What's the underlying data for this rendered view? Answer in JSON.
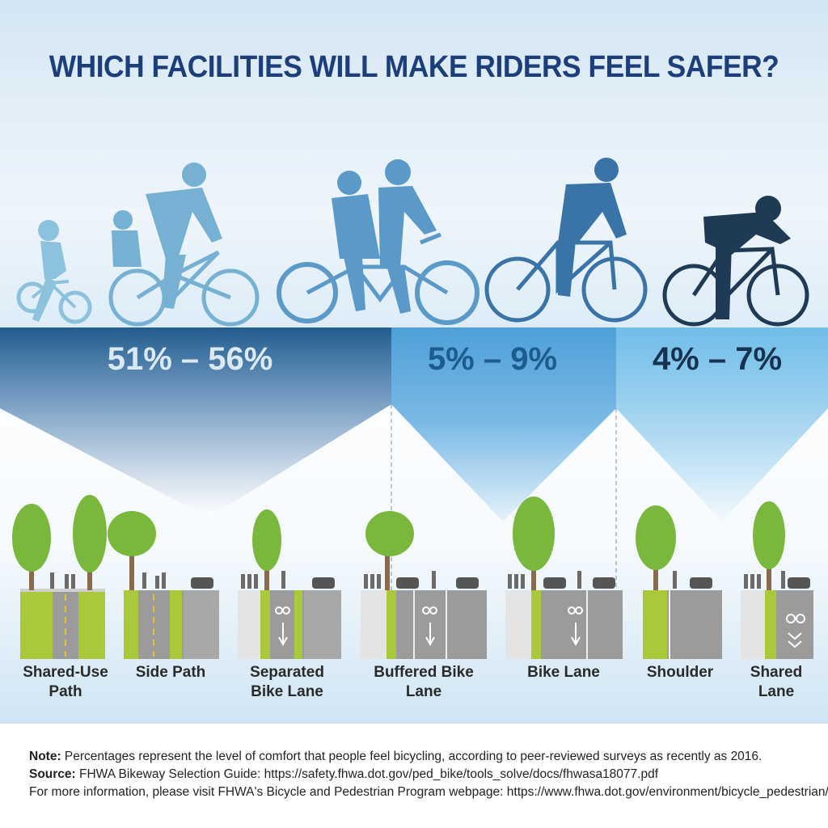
{
  "title": "WHICH FACILITIES WILL MAKE RIDERS FEEL SAFER?",
  "groups": [
    {
      "range": "51% – 56%",
      "color": "#dbe9f4",
      "members": [
        "Shared-Use Path",
        "Side Path",
        "Separated Bike Lane"
      ]
    },
    {
      "range": "5% – 9%",
      "color": "#1d5c8e",
      "members": [
        "Buffered Bike Lane",
        "Bike Lane"
      ]
    },
    {
      "range": "4% – 7%",
      "color": "#16324f",
      "members": [
        "Shoulder",
        "Shared Lane"
      ]
    }
  ],
  "facilities": [
    {
      "line1": "Shared-Use",
      "line2": "Path"
    },
    {
      "line1": "Side Path",
      "line2": ""
    },
    {
      "line1": "Separated",
      "line2": "Bike Lane"
    },
    {
      "line1": "Buffered Bike",
      "line2": "Lane"
    },
    {
      "line1": "Bike Lane",
      "line2": ""
    },
    {
      "line1": "Shoulder",
      "line2": ""
    },
    {
      "line1": "Shared",
      "line2": "Lane"
    }
  ],
  "notes": {
    "note_label": "Note:",
    "note_text": " Percentages represent the level of comfort that people feel bicycling, according to peer-reviewed surveys as recently as 2016.",
    "source_label": "Source:",
    "source_text": " FHWA Bikeway Selection Guide: https://safety.fhwa.dot.gov/ped_bike/tools_solve/docs/fhwasa18077.pdf",
    "more_text": "For more information, please visit FHWA's Bicycle and Pedestrian Program webpage: https://www.fhwa.dot.gov/environment/bicycle_pedestrian/"
  },
  "colors": {
    "title": "#1c3f7c",
    "green_lane": "#a9c93b",
    "road": "#9b9b9b",
    "tree": "#79b83c",
    "rider_light": "#7fb6d6",
    "rider_mid": "#3f7fb4",
    "rider_dark": "#1e3a56"
  },
  "icons": [
    "bicycle-rider-icon",
    "tree-icon",
    "pedestrian-icon",
    "car-icon",
    "bike-lane-symbol-icon",
    "sharrow-icon"
  ]
}
